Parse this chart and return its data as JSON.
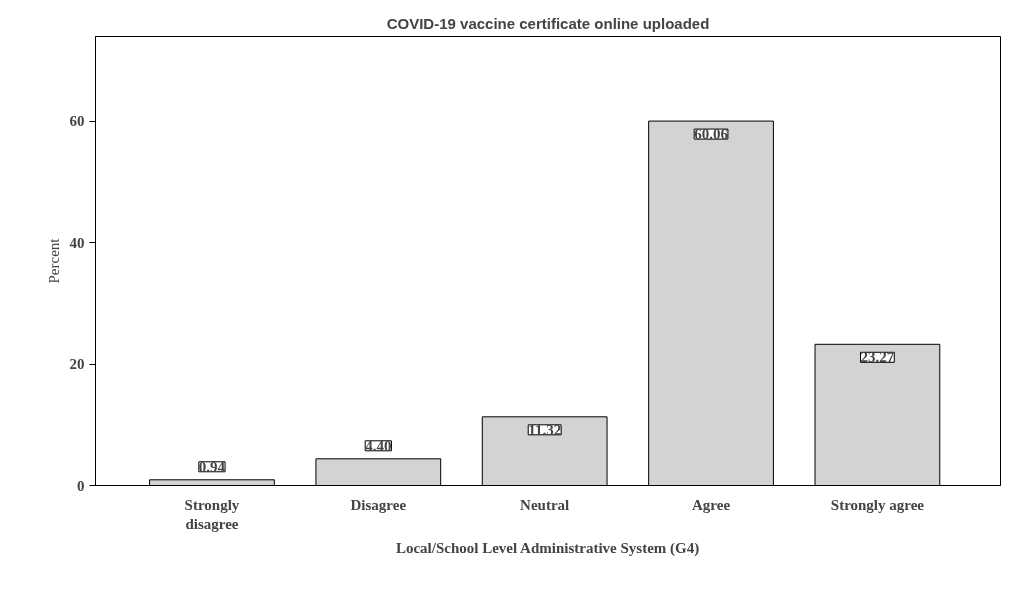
{
  "chart_data": {
    "type": "bar",
    "title": "COVID-19 vaccine certificate online uploaded",
    "xlabel": "Local/School Level Administrative System (G4)",
    "ylabel": "Percent",
    "categories": [
      "Strongly disagree",
      "Disagree",
      "Neutral",
      "Agree",
      "Strongly agree"
    ],
    "values": [
      0.94,
      4.4,
      11.32,
      60.06,
      23.27
    ],
    "value_labels": [
      "0.94",
      "4.40",
      "11.32",
      "60.06",
      "23.27"
    ],
    "color": "#d3d3d3",
    "ylim": [
      0,
      74
    ],
    "yticks": [
      0,
      20,
      40,
      60
    ],
    "grid": false
  }
}
